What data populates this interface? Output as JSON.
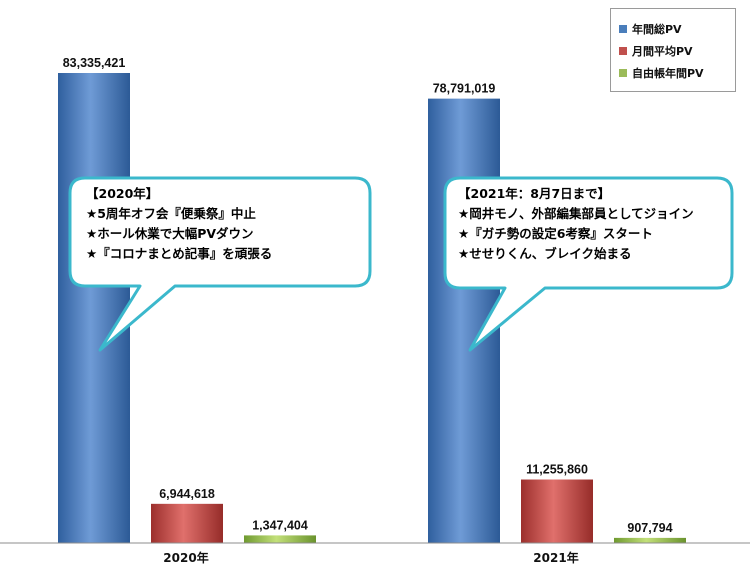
{
  "chart_data": {
    "type": "bar",
    "categories": [
      "2020年",
      "2021年"
    ],
    "series": [
      {
        "name": "年間総PV",
        "values": [
          83335421,
          78791019
        ],
        "labels": [
          "83,335,421",
          "78,791,019"
        ],
        "color": "#4a7ebb"
      },
      {
        "name": "月間平均PV",
        "values": [
          6944618,
          11255860
        ],
        "labels": [
          "6,944,618",
          "11,255,860"
        ],
        "color": "#c0504d"
      },
      {
        "name": "自由帳年間PV",
        "values": [
          1347404,
          907794
        ],
        "labels": [
          "1,347,404",
          "907,794"
        ],
        "color": "#9bbb59"
      }
    ],
    "ylim": [
      0,
      83335421
    ],
    "grid": false,
    "legend": "top-right",
    "annotations": [
      {
        "category": "2020年",
        "lines": [
          "【2020年】",
          "★5周年オフ会『便乗祭』中止",
          "★ホール休業で大幅PVダウン",
          "★『コロナまとめ記事』を頑張る"
        ]
      },
      {
        "category": "2021年",
        "lines": [
          "【2021年：8月7日まで】",
          "★岡井モノ、外部編集部員としてジョイン",
          "★『ガチ勢の設定6考察』スタート",
          "★せせりくん、ブレイク始まる"
        ]
      }
    ]
  }
}
